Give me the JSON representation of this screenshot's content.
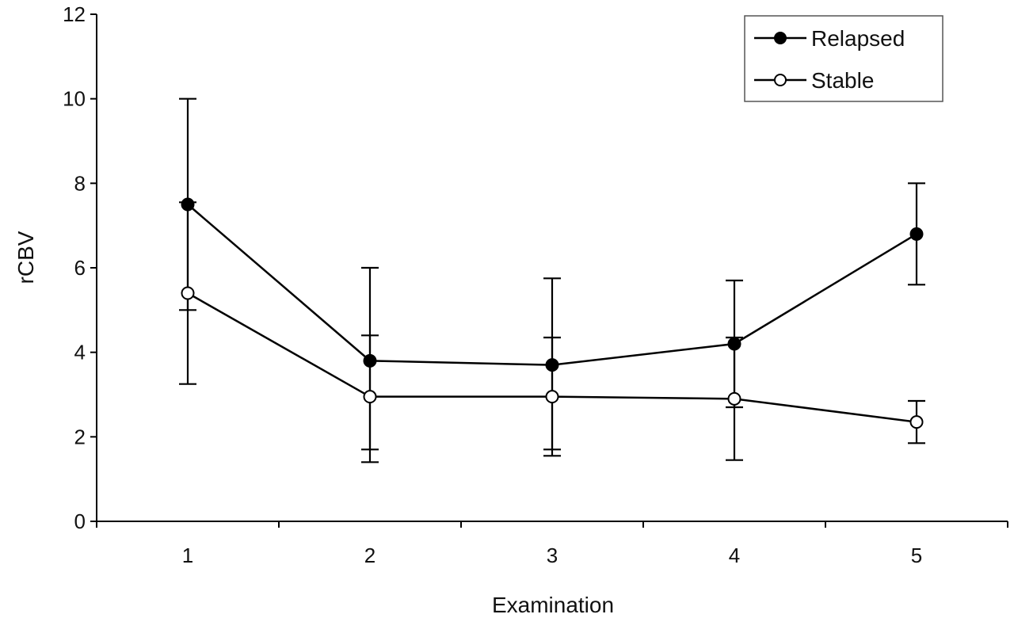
{
  "chart_data": {
    "type": "line",
    "xlabel": "Examination",
    "ylabel": "rCBV",
    "categories": [
      "1",
      "2",
      "3",
      "4",
      "5"
    ],
    "ylim": [
      0,
      12
    ],
    "yticks": [
      "0",
      "2",
      "4",
      "6",
      "8",
      "10",
      "12"
    ],
    "legend_position": "top-right",
    "series": [
      {
        "name": "Relapsed",
        "marker": "filled-circle",
        "values": [
          7.5,
          3.8,
          3.7,
          4.2,
          6.8
        ],
        "err_low": [
          5.0,
          1.7,
          1.7,
          2.7,
          5.6
        ],
        "err_high": [
          10.0,
          6.0,
          5.75,
          5.7,
          8.0
        ]
      },
      {
        "name": "Stable",
        "marker": "open-circle",
        "values": [
          5.4,
          2.95,
          2.95,
          2.9,
          2.35
        ],
        "err_low": [
          3.25,
          1.4,
          1.55,
          1.45,
          1.85
        ],
        "err_high": [
          7.55,
          4.4,
          4.35,
          4.35,
          2.85
        ]
      }
    ]
  }
}
